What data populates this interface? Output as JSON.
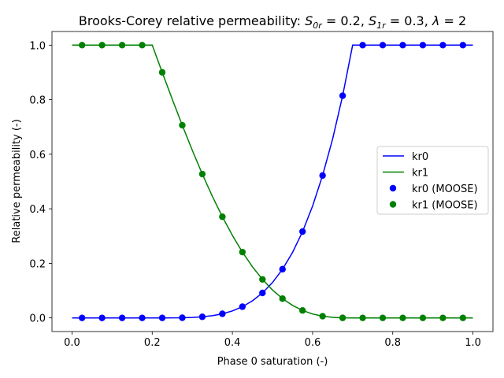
{
  "chart_data": {
    "type": "line",
    "title": {
      "text": "Brooks-Corey relative permeability: ",
      "math": [
        {
          "base": "S",
          "sub": "0r",
          "rest": " = 0.2, "
        },
        {
          "base": "S",
          "sub": "1r",
          "rest": " = 0.3, "
        },
        {
          "base": "λ",
          "sub": "",
          "rest": " = 2"
        }
      ]
    },
    "xlabel": "Phase 0 saturation (-)",
    "ylabel": "Relative permeability (-)",
    "xlim": [
      -0.05,
      1.05
    ],
    "ylim": [
      -0.05,
      1.05
    ],
    "xticks": [
      "0.0",
      "0.2",
      "0.4",
      "0.6",
      "0.8",
      "1.0"
    ],
    "yticks": [
      "0.0",
      "0.2",
      "0.4",
      "0.6",
      "0.8",
      "1.0"
    ],
    "grid": false,
    "legend_position": "center-right",
    "line_x": [
      0.0,
      0.2,
      0.225,
      0.25,
      0.275,
      0.3,
      0.325,
      0.35,
      0.375,
      0.4,
      0.425,
      0.45,
      0.475,
      0.5,
      0.525,
      0.55,
      0.575,
      0.6,
      0.625,
      0.65,
      0.675,
      0.7,
      1.0
    ],
    "point_x": [
      0.025,
      0.075,
      0.125,
      0.175,
      0.225,
      0.275,
      0.325,
      0.375,
      0.425,
      0.475,
      0.525,
      0.575,
      0.625,
      0.675,
      0.725,
      0.775,
      0.825,
      0.875,
      0.925,
      0.975
    ],
    "series": [
      {
        "name": "kr0",
        "kind": "line",
        "color": "#0000ff",
        "values": [
          0,
          0,
          1e-05,
          0.0001,
          0.0005,
          0.0016,
          0.0039,
          0.0081,
          0.015,
          0.0256,
          0.041,
          0.0625,
          0.0915,
          0.1296,
          0.1785,
          0.2401,
          0.3164,
          0.4096,
          0.522,
          0.6561,
          0.8145,
          1.0,
          1.0
        ]
      },
      {
        "name": "kr1",
        "kind": "line",
        "color": "#008000",
        "values": [
          1.0,
          1.0,
          0.9002,
          0.8019,
          0.7062,
          0.6144,
          0.5273,
          0.4459,
          0.3708,
          0.3024,
          0.2412,
          0.1875,
          0.1412,
          0.1024,
          0.0707,
          0.0459,
          0.0273,
          0.0144,
          0.0062,
          0.0019,
          0.0002,
          0,
          0
        ]
      },
      {
        "name": "kr0 (MOOSE)",
        "kind": "points",
        "color": "#0000ff",
        "values": [
          0,
          0,
          0,
          0,
          1e-05,
          0.0005,
          0.0039,
          0.015,
          0.041,
          0.0915,
          0.1785,
          0.3164,
          0.522,
          0.8145,
          1,
          1,
          1,
          1,
          1,
          1
        ]
      },
      {
        "name": "kr1 (MOOSE)",
        "kind": "points",
        "color": "#008000",
        "values": [
          1,
          1,
          1,
          1,
          0.9002,
          0.7062,
          0.5273,
          0.3708,
          0.2412,
          0.1412,
          0.0707,
          0.0273,
          0.0062,
          0.0002,
          0,
          0,
          0,
          0,
          0,
          0
        ]
      }
    ]
  }
}
